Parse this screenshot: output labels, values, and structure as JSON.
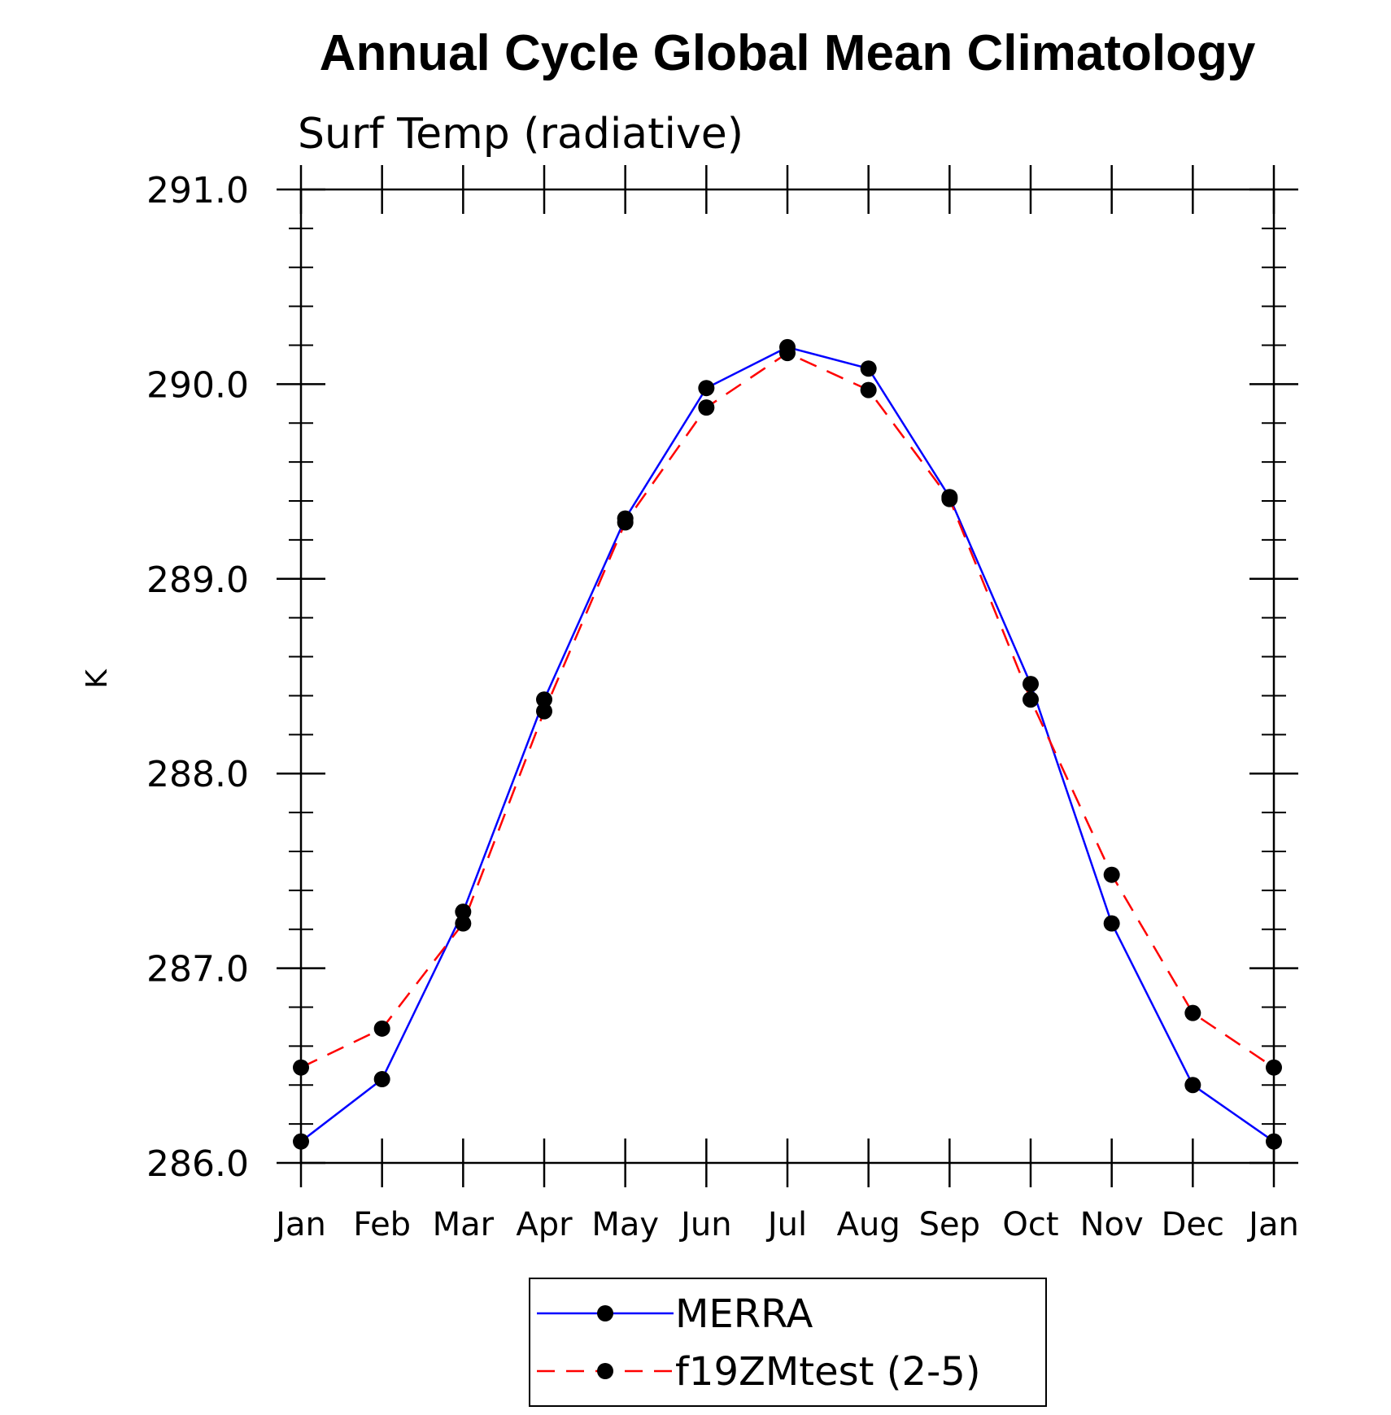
{
  "chart_data": {
    "type": "line",
    "title": "Annual Cycle Global Mean Climatology",
    "subtitle": "Surf Temp (radiative)",
    "ylabel": "K",
    "xlabel": "",
    "categories": [
      "Jan",
      "Feb",
      "Mar",
      "Apr",
      "May",
      "Jun",
      "Jul",
      "Aug",
      "Sep",
      "Oct",
      "Nov",
      "Dec",
      "Jan"
    ],
    "ylim": [
      286.0,
      291.0
    ],
    "yticks": [
      "286.0",
      "287.0",
      "288.0",
      "289.0",
      "290.0",
      "291.0"
    ],
    "grid": false,
    "legend": "bottom",
    "series": [
      {
        "name": "MERRA",
        "color": "#0000ff",
        "dash": "solid",
        "marker": "filled-circle",
        "values": [
          286.11,
          286.43,
          287.29,
          288.38,
          289.31,
          289.98,
          290.19,
          290.08,
          289.42,
          288.46,
          287.23,
          286.4,
          286.11
        ]
      },
      {
        "name": "f19ZMtest (2-5)",
        "color": "#ff0000",
        "dash": "dashed",
        "marker": "filled-circle",
        "values": [
          286.49,
          286.69,
          287.23,
          288.32,
          289.29,
          289.88,
          290.16,
          289.97,
          289.41,
          288.38,
          287.48,
          286.77,
          286.49
        ]
      }
    ]
  }
}
